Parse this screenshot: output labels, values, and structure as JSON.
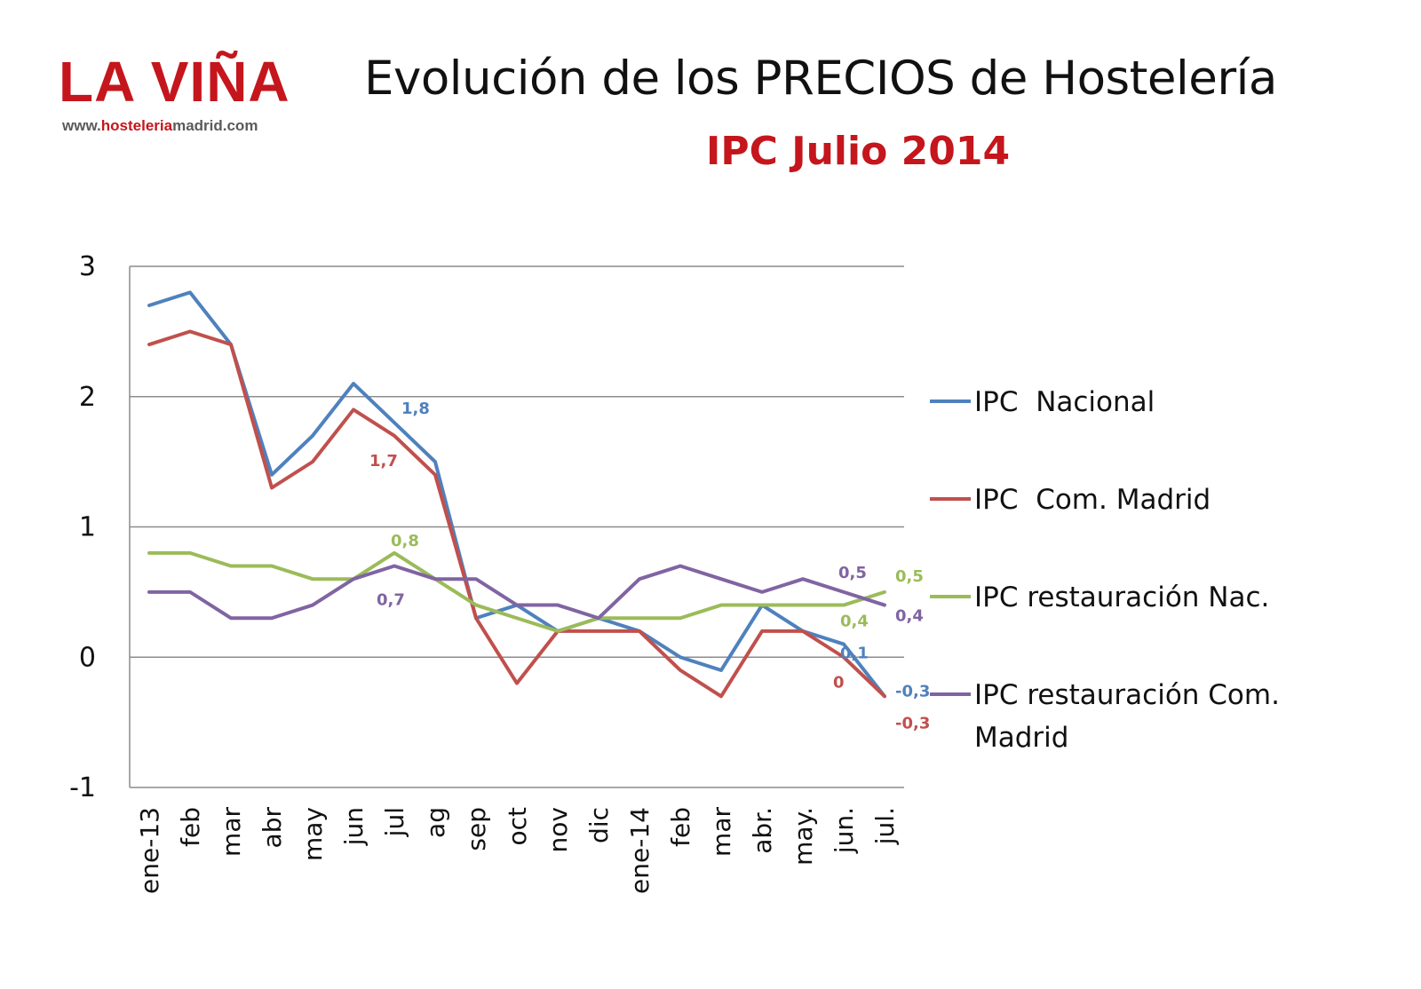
{
  "header": {
    "logo_text": "LA VIÑA",
    "logo_url_prefix": "www.",
    "logo_url_highlight": "hosteleria",
    "logo_url_suffix": "madrid.com",
    "title": "Evolución de los PRECIOS de Hostelería",
    "subtitle": "IPC Julio 2014"
  },
  "colors": {
    "brand_red": "#c4161c"
  },
  "chart_data": {
    "type": "line",
    "categories": [
      "ene-13",
      "feb",
      "mar",
      "abr",
      "may",
      "jun",
      "jul",
      "ag",
      "sep",
      "oct",
      "nov",
      "dic",
      "ene-14",
      "feb",
      "mar",
      "abr.",
      "may.",
      "jun.",
      "jul."
    ],
    "ylim": [
      -1,
      3
    ],
    "yticks": [
      "3",
      "2",
      "1",
      "0",
      "-1"
    ],
    "grid": true,
    "legend_position": "right",
    "series": [
      {
        "name": "IPC  Nacional",
        "color": "#4f81bd",
        "values": [
          2.7,
          2.8,
          2.4,
          1.4,
          1.7,
          2.1,
          1.8,
          1.5,
          0.3,
          0.4,
          0.2,
          0.3,
          0.2,
          0.0,
          -0.1,
          0.4,
          0.2,
          0.1,
          -0.3
        ]
      },
      {
        "name": "IPC  Com. Madrid",
        "color": "#c0504d",
        "values": [
          2.4,
          2.5,
          2.4,
          1.3,
          1.5,
          1.9,
          1.7,
          1.4,
          0.3,
          -0.2,
          0.2,
          0.2,
          0.2,
          -0.1,
          -0.3,
          0.2,
          0.2,
          0.0,
          -0.3
        ]
      },
      {
        "name": "IPC restauración Nac.",
        "color": "#9bbb59",
        "values": [
          0.8,
          0.8,
          0.7,
          0.7,
          0.6,
          0.6,
          0.8,
          0.6,
          0.4,
          0.3,
          0.2,
          0.3,
          0.3,
          0.3,
          0.4,
          0.4,
          0.4,
          0.4,
          0.5
        ]
      },
      {
        "name": "IPC restauración Com. Madrid",
        "legend_lines": [
          "IPC restauración Com.",
          "Madrid"
        ],
        "color": "#8064a2",
        "values": [
          0.5,
          0.5,
          0.3,
          0.3,
          0.4,
          0.6,
          0.7,
          0.6,
          0.6,
          0.4,
          0.4,
          0.3,
          0.6,
          0.7,
          0.6,
          0.5,
          0.6,
          0.5,
          0.4
        ]
      }
    ],
    "data_labels": [
      {
        "series": 0,
        "index": 6,
        "text": "1,8"
      },
      {
        "series": 1,
        "index": 6,
        "text": "1,7"
      },
      {
        "series": 2,
        "index": 6,
        "text": "0,8"
      },
      {
        "series": 3,
        "index": 6,
        "text": "0,7"
      },
      {
        "series": 3,
        "index": 17,
        "text": "0,5"
      },
      {
        "series": 2,
        "index": 17,
        "text": "0,4"
      },
      {
        "series": 0,
        "index": 17,
        "text": "0,1"
      },
      {
        "series": 1,
        "index": 17,
        "text": "0"
      },
      {
        "series": 2,
        "index": 18,
        "text": "0,5"
      },
      {
        "series": 3,
        "index": 18,
        "text": "0,4"
      },
      {
        "series": 0,
        "index": 18,
        "text": "-0,3"
      },
      {
        "series": 1,
        "index": 18,
        "text": "-0,3"
      }
    ]
  }
}
